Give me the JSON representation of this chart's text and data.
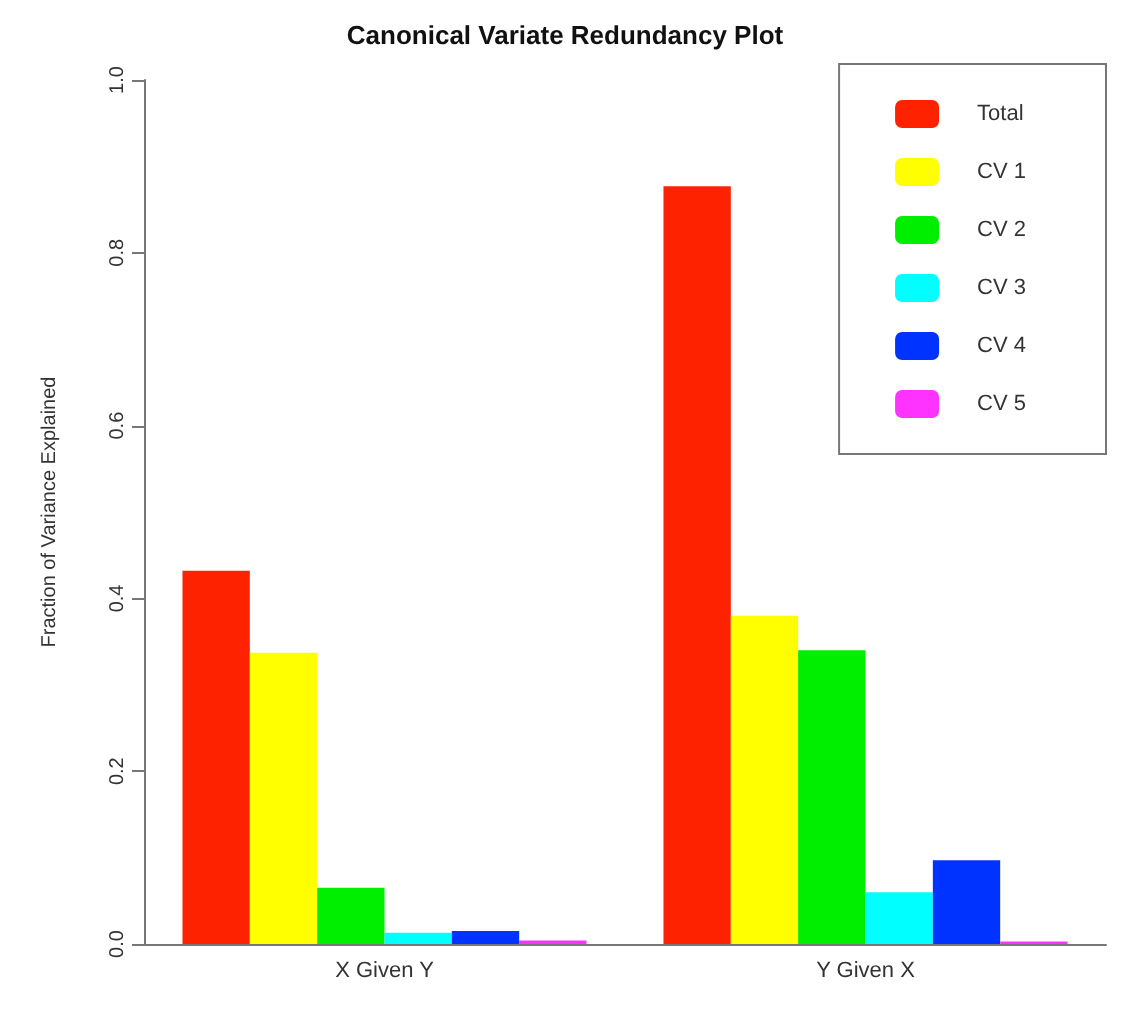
{
  "chart_data": {
    "type": "bar",
    "title": "Canonical Variate Redundancy Plot",
    "ylabel": "Fraction of Variance Explained",
    "categories": [
      "X Given Y",
      "Y Given X"
    ],
    "series": [
      {
        "name": "Total",
        "color": "#ff2200",
        "values": [
          0.432,
          0.877
        ]
      },
      {
        "name": "CV 1",
        "color": "#ffff00",
        "values": [
          0.337,
          0.38
        ]
      },
      {
        "name": "CV 2",
        "color": "#00ee00",
        "values": [
          0.065,
          0.34
        ]
      },
      {
        "name": "CV 3",
        "color": "#00ffff",
        "values": [
          0.013,
          0.06
        ]
      },
      {
        "name": "CV 4",
        "color": "#0033ff",
        "values": [
          0.015,
          0.097
        ]
      },
      {
        "name": "CV 5",
        "color": "#ff33ff",
        "values": [
          0.004,
          0.003
        ]
      }
    ],
    "ylim": [
      0,
      1
    ],
    "yticks": [
      {
        "value": 0,
        "label": "0.0"
      },
      0.2,
      0.4,
      0.6,
      0.8,
      {
        "value": 1,
        "label": "1.0"
      }
    ],
    "grid": false,
    "legend": "top right"
  }
}
